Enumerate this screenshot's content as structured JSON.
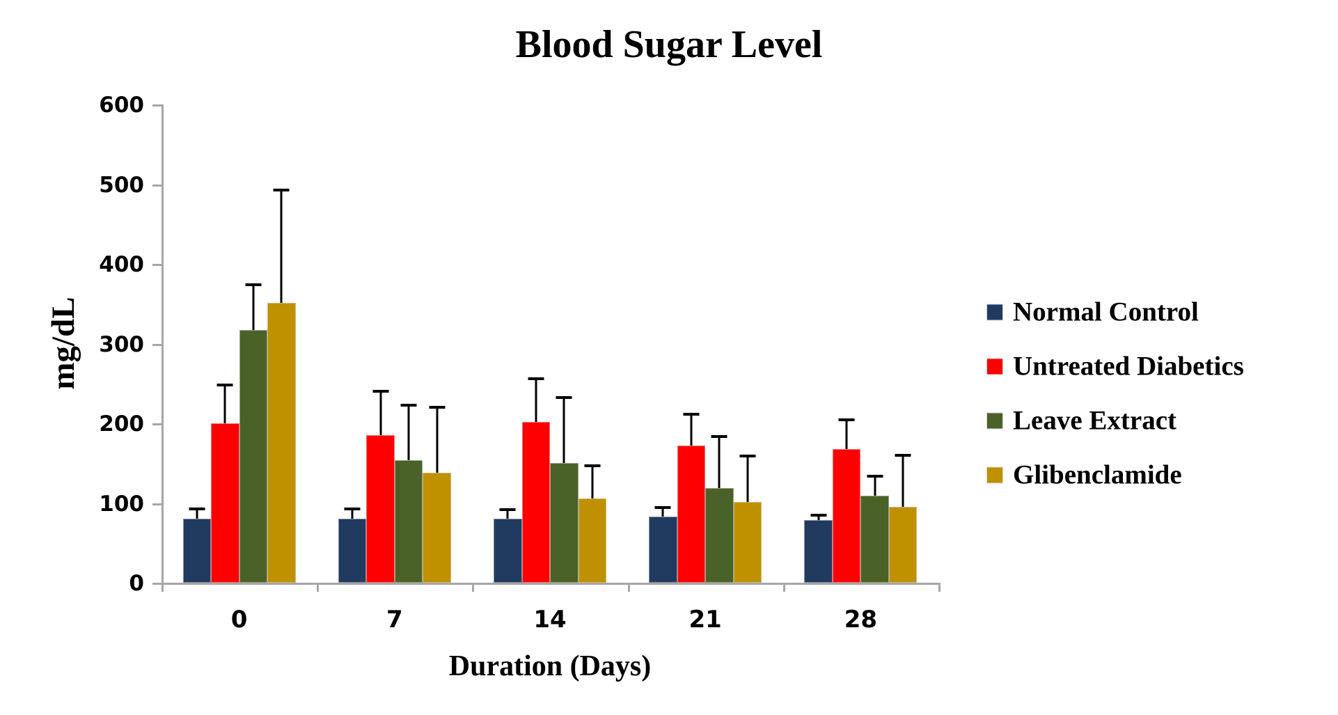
{
  "title": "Blood Sugar Level",
  "axes": {
    "y_label": "mg/dL",
    "x_label": "Duration (Days)",
    "y_ticks": [
      0,
      100,
      200,
      300,
      400,
      500,
      600
    ],
    "x_ticks": [
      "0",
      "7",
      "14",
      "21",
      "28"
    ]
  },
  "colors": {
    "axis": "#a6a6a6",
    "normal_control": "#213A60",
    "untreated_diabetics": "#FF0000",
    "leave_extract": "#4A6228",
    "glibenclamide": "#BF9000"
  },
  "legend": {
    "entries": [
      "Normal Control",
      "Untreated Diabetics",
      "Leave Extract",
      "Glibenclamide"
    ]
  },
  "chart_data": {
    "type": "bar",
    "title": "Blood Sugar Level",
    "xlabel": "Duration (Days)",
    "ylabel": "mg/dL",
    "ylim": [
      0,
      600
    ],
    "ytick_interval": 100,
    "grid": false,
    "legend_position": "right",
    "error_bars": "plus-direction",
    "categories": [
      "0",
      "7",
      "14",
      "21",
      "28"
    ],
    "series": [
      {
        "name": "Normal Control",
        "color": "#213A60",
        "values": [
          80,
          80,
          80,
          83,
          79
        ],
        "errors": [
          13,
          13,
          12,
          11,
          6
        ]
      },
      {
        "name": "Untreated Diabetics",
        "color": "#FF0000",
        "values": [
          200,
          185,
          202,
          172,
          168
        ],
        "errors": [
          48,
          55,
          54,
          39,
          36
        ]
      },
      {
        "name": "Leave Extract",
        "color": "#4A6228",
        "values": [
          317,
          154,
          150,
          119,
          109
        ],
        "errors": [
          57,
          69,
          82,
          64,
          25
        ]
      },
      {
        "name": "Glibenclamide",
        "color": "#BF9000",
        "values": [
          351,
          138,
          106,
          101,
          95
        ],
        "errors": [
          142,
          82,
          41,
          58,
          65
        ]
      }
    ]
  }
}
